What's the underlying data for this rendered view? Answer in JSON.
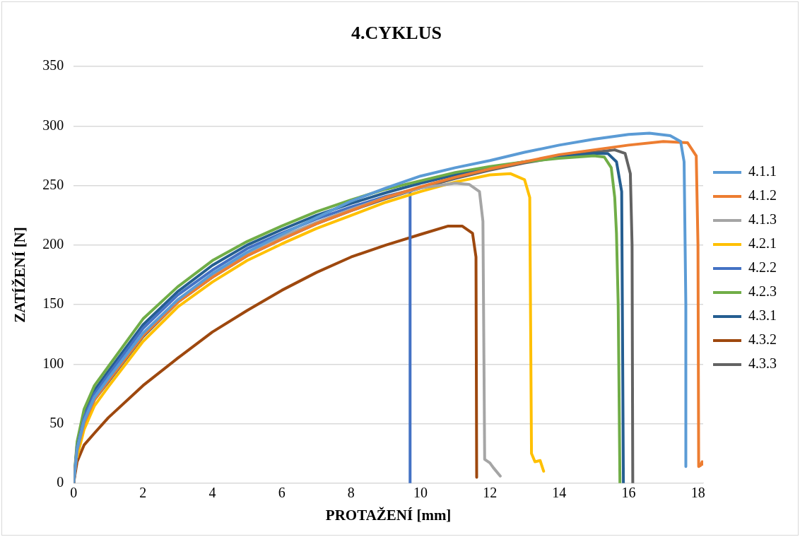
{
  "chart_data": {
    "type": "line",
    "title": "4.CYKLUS",
    "xlabel": "PROTAŽENÍ [mm]",
    "ylabel": "ZATÍŽENÍ [N]",
    "xlim": [
      0,
      18.15
    ],
    "xticks": [
      0,
      2,
      4,
      6,
      8,
      10,
      12,
      14,
      16,
      18
    ],
    "ylim": [
      0,
      350
    ],
    "yticks": [
      0,
      50,
      100,
      150,
      200,
      250,
      300,
      350
    ],
    "grid": "y",
    "legend": "right",
    "marker": "none",
    "line_style": "solid",
    "series": [
      {
        "name": "4.1.1",
        "color": "#5b9bd5",
        "x": [
          0,
          0.1,
          0.3,
          0.6,
          1,
          2,
          3,
          4,
          5,
          6,
          7,
          8,
          9,
          10,
          11,
          12,
          13,
          14,
          15,
          16,
          16.6,
          17.2,
          17.5,
          17.6,
          17.65,
          17.65
        ],
        "values": [
          0,
          28,
          52,
          72,
          88,
          126,
          154,
          176,
          194,
          209,
          223,
          237,
          248,
          258,
          265,
          271,
          278,
          284,
          289,
          293,
          294,
          292,
          287,
          270,
          150,
          14
        ]
      },
      {
        "name": "4.1.2",
        "color": "#ed7d31",
        "x": [
          0,
          0.1,
          0.3,
          0.6,
          1,
          2,
          3,
          4,
          5,
          6,
          7,
          8,
          9,
          10,
          11,
          12,
          13,
          14,
          15,
          16,
          17,
          17.7,
          17.95,
          18,
          18.02,
          18.08,
          18.12,
          18.15
        ],
        "values": [
          0,
          27,
          50,
          70,
          86,
          124,
          152,
          173,
          191,
          205,
          218,
          229,
          240,
          249,
          257,
          264,
          270,
          276,
          280,
          284,
          287,
          286,
          275,
          200,
          14,
          15,
          18,
          16
        ]
      },
      {
        "name": "4.1.3",
        "color": "#a5a5a5",
        "x": [
          0,
          0.1,
          0.3,
          0.6,
          1,
          2,
          3,
          4,
          5,
          6,
          7,
          8,
          9,
          10,
          11,
          11.4,
          11.7,
          11.8,
          11.85,
          12,
          12.1,
          12.3
        ],
        "values": [
          0,
          28,
          52,
          72,
          87,
          125,
          154,
          175,
          193,
          207,
          219,
          230,
          240,
          248,
          252,
          251,
          245,
          220,
          20,
          17,
          13,
          6
        ]
      },
      {
        "name": "4.2.1",
        "color": "#ffc000",
        "x": [
          0.1,
          0.3,
          0.6,
          1,
          2,
          3,
          4,
          5,
          6,
          7,
          8,
          9,
          10,
          11,
          12,
          12.6,
          13,
          13.15,
          13.2,
          13.3,
          13.45,
          13.55
        ],
        "values": [
          22,
          45,
          65,
          81,
          119,
          148,
          169,
          187,
          201,
          214,
          225,
          236,
          245,
          253,
          259,
          260,
          255,
          240,
          25,
          18,
          19,
          10
        ]
      },
      {
        "name": "4.2.2",
        "color": "#4472c4",
        "x": [
          0,
          0.1,
          0.3,
          0.6,
          1,
          2,
          3,
          4,
          5,
          6,
          7,
          8,
          9,
          9.7,
          9.7
        ],
        "values": [
          0,
          30,
          55,
          75,
          91,
          130,
          158,
          179,
          197,
          210,
          222,
          232,
          241,
          246,
          0
        ]
      },
      {
        "name": "4.2.3",
        "color": "#70ad47",
        "x": [
          0,
          0.1,
          0.3,
          0.6,
          1,
          2,
          3,
          4,
          5,
          6,
          7,
          8,
          9,
          10,
          11,
          12,
          13,
          14,
          15,
          15.3,
          15.5,
          15.6,
          15.65,
          15.7,
          15.75
        ],
        "values": [
          0,
          35,
          62,
          82,
          98,
          138,
          165,
          187,
          203,
          216,
          228,
          238,
          247,
          254,
          261,
          266,
          270,
          273,
          275,
          274,
          265,
          240,
          210,
          150,
          0
        ]
      },
      {
        "name": "4.3.1",
        "color": "#255e91",
        "x": [
          0,
          0.1,
          0.3,
          0.6,
          1,
          2,
          3,
          4,
          5,
          6,
          7,
          8,
          9,
          10,
          11,
          12,
          13,
          14,
          15,
          15.4,
          15.65,
          15.8,
          15.85
        ],
        "values": [
          0,
          32,
          58,
          78,
          94,
          133,
          161,
          183,
          200,
          213,
          225,
          235,
          244,
          252,
          259,
          265,
          270,
          274,
          277,
          277,
          270,
          245,
          0
        ]
      },
      {
        "name": "4.3.2",
        "color": "#9e480e",
        "x": [
          0,
          0.1,
          0.3,
          0.6,
          1,
          2,
          3,
          4,
          5,
          6,
          7,
          8,
          9,
          10,
          10.8,
          11.2,
          11.5,
          11.6,
          11.62
        ],
        "values": [
          0,
          18,
          32,
          42,
          55,
          82,
          105,
          127,
          145,
          162,
          177,
          190,
          200,
          209,
          216,
          216,
          210,
          190,
          5
        ]
      },
      {
        "name": "4.3.3",
        "color": "#636363",
        "x": [
          0,
          0.1,
          0.3,
          0.6,
          1,
          2,
          3,
          4,
          5,
          6,
          7,
          8,
          9,
          10,
          11,
          12,
          13,
          14,
          15,
          15.6,
          15.9,
          16.05,
          16.1,
          16.12
        ],
        "values": [
          0,
          27,
          50,
          70,
          85,
          123,
          152,
          173,
          191,
          205,
          218,
          229,
          239,
          248,
          256,
          263,
          269,
          274,
          278,
          280,
          277,
          260,
          200,
          0
        ]
      }
    ]
  }
}
